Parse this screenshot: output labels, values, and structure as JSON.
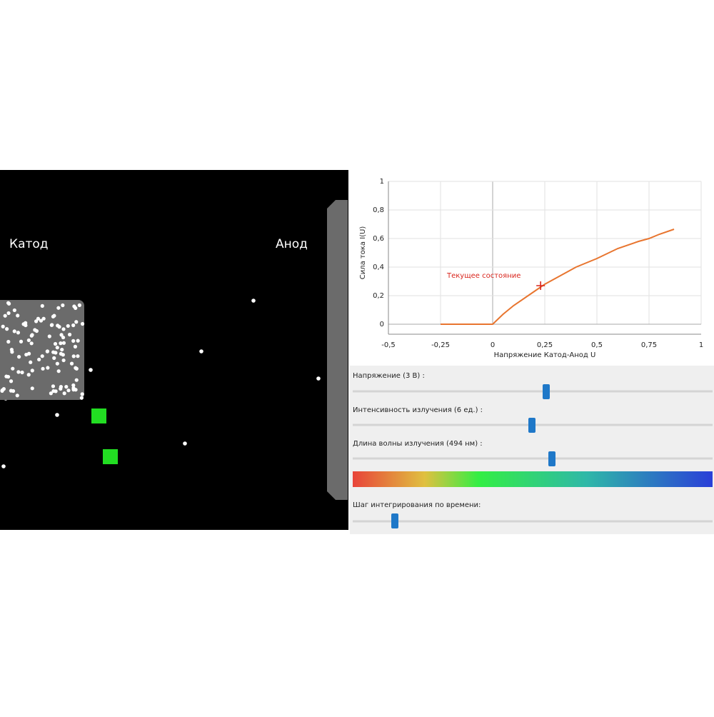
{
  "simulation": {
    "cathode_label": "Катод",
    "anode_label": "Анод"
  },
  "chart_data": {
    "type": "line",
    "x_label": "Напряжение Катод-Анод U",
    "y_label": "Сила тока I(U)",
    "x": [
      -0.25,
      0,
      0.05,
      0.1,
      0.2,
      0.25,
      0.3,
      0.4,
      0.5,
      0.6,
      0.7,
      0.75,
      0.8,
      0.87
    ],
    "series": [
      {
        "color": "#e8752f",
        "values": [
          0,
          0,
          0.07,
          0.13,
          0.23,
          0.28,
          0.32,
          0.4,
          0.46,
          0.53,
          0.58,
          0.6,
          0.63,
          0.665
        ]
      }
    ],
    "marker": {
      "label": "Текущее состояние",
      "x": 0.23,
      "y": 0.27,
      "color": "#d9251d"
    },
    "xlim": [
      -0.5,
      1
    ],
    "ylim": [
      0,
      1
    ],
    "xticks": [
      {
        "value": -0.5,
        "label": "-0,5"
      },
      {
        "value": -0.25,
        "label": "-0,25"
      },
      0,
      {
        "value": 0.25,
        "label": "0,25"
      },
      {
        "value": 0.5,
        "label": "0,5"
      },
      {
        "value": 0.75,
        "label": "0,75"
      },
      1
    ],
    "yticks": [
      0,
      {
        "value": 0.2,
        "label": "0,2"
      },
      {
        "value": 0.4,
        "label": "0,4"
      },
      {
        "value": 0.6,
        "label": "0,6"
      },
      {
        "value": 0.8,
        "label": "0,8"
      },
      1
    ],
    "grid": true
  },
  "controls": {
    "voltage": "Напряжение (3 В) :",
    "intensity": "Интенсивность излучения (6 ед.) :",
    "wavelength": "Длина волны излучения (494 нм) :",
    "time_step": "Шаг интегрирования по времени:"
  }
}
